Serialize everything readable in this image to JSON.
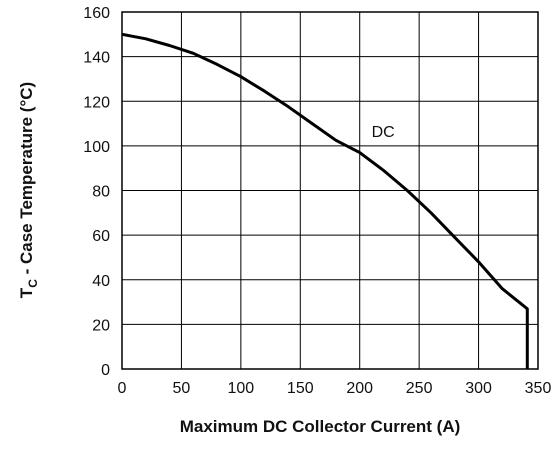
{
  "chart_data": {
    "type": "line",
    "title": "",
    "xlabel": "Maximum DC Collector Current (A)",
    "ylabel_main": "T",
    "ylabel_sub": "C",
    "ylabel_rest": " - Case Temperature (°C)",
    "xlim": [
      0,
      350
    ],
    "ylim": [
      0,
      160
    ],
    "xticks": [
      0,
      50,
      100,
      150,
      200,
      250,
      300,
      350
    ],
    "yticks": [
      0,
      20,
      40,
      60,
      80,
      100,
      120,
      140,
      160
    ],
    "grid": true,
    "legend": "none",
    "series": [
      {
        "label": "DC",
        "label_at": {
          "x": 210,
          "y": 104
        },
        "x": [
          0,
          20,
          40,
          60,
          80,
          100,
          120,
          140,
          160,
          180,
          200,
          220,
          240,
          260,
          280,
          300,
          320,
          341,
          341,
          341
        ],
        "y": [
          150,
          148,
          145,
          141.5,
          136.5,
          131,
          124.5,
          117.5,
          110,
          102.5,
          97,
          89,
          80,
          70,
          59,
          48,
          36,
          27,
          15,
          0
        ]
      }
    ],
    "line_color": "#000000",
    "grid_color": "#000000"
  }
}
